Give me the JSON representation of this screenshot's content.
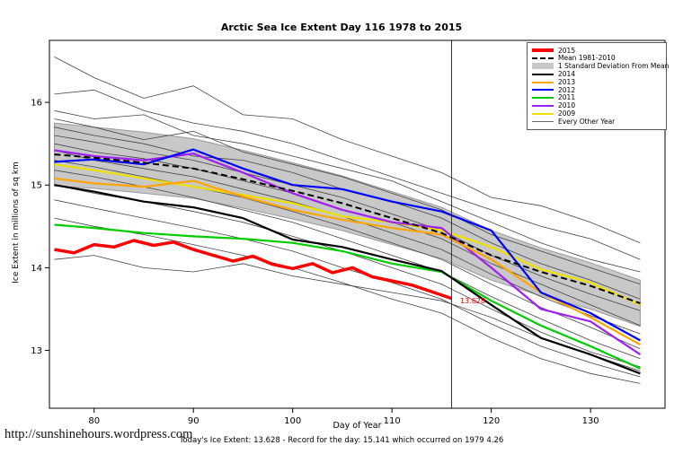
{
  "title": "Arctic Sea Ice Extent Day 116 1978 to 2015",
  "footer": {
    "url": "http://sunshinehours.wordpress.com",
    "caption": "Today's Ice Extent: 13.628  - Record for the day: 15.141 which occurred on 1979 4.26"
  },
  "legend": {
    "items": [
      {
        "label": "2015",
        "swatch": "line",
        "color": "#FF0000",
        "weight": 4
      },
      {
        "label": "Mean 1981-2010",
        "swatch": "dashed",
        "color": "#000000",
        "weight": 2
      },
      {
        "label": "1 Standard Deviation From Mean",
        "swatch": "box",
        "color": "#C8C8C8"
      },
      {
        "label": "2014",
        "swatch": "line",
        "color": "#000000",
        "weight": 2
      },
      {
        "label": "2013",
        "swatch": "line",
        "color": "#FFA500",
        "weight": 2
      },
      {
        "label": "2012",
        "swatch": "line",
        "color": "#0000FF",
        "weight": 2
      },
      {
        "label": "2011",
        "swatch": "line",
        "color": "#00CC00",
        "weight": 2
      },
      {
        "label": "2010",
        "swatch": "line",
        "color": "#A020F0",
        "weight": 2
      },
      {
        "label": "2009",
        "swatch": "line",
        "color": "#EFE000",
        "weight": 2
      },
      {
        "label": "Every Other Year",
        "swatch": "line",
        "color": "#666666",
        "weight": 1
      }
    ]
  },
  "chart_data": {
    "type": "line",
    "title": "Arctic Sea Ice Extent Day 116 1978 to 2015",
    "xlabel": "Day of Year",
    "ylabel": "Ice Extent in millions of sq km",
    "xlim": [
      75.5,
      137.5
    ],
    "ylim": [
      12.3,
      16.75
    ],
    "xticks": [
      80,
      90,
      100,
      110,
      120,
      130
    ],
    "yticks": [
      13,
      14,
      15,
      16
    ],
    "vline_x": 116,
    "annotation": {
      "text": "13.628",
      "x": 116.5,
      "y": 13.6,
      "color": "#FF0000"
    },
    "x": [
      76,
      80,
      85,
      90,
      95,
      100,
      105,
      110,
      115,
      120,
      125,
      130,
      135
    ],
    "band": {
      "label": "1 Standard Deviation From Mean",
      "color": "#C8C8C8",
      "x": [
        76,
        80,
        85,
        90,
        95,
        100,
        105,
        110,
        115,
        120,
        125,
        130,
        135
      ],
      "upper": [
        15.75,
        15.7,
        15.64,
        15.56,
        15.42,
        15.27,
        15.11,
        14.92,
        14.73,
        14.45,
        14.24,
        14.06,
        13.85
      ],
      "lower": [
        14.99,
        14.96,
        14.9,
        14.84,
        14.72,
        14.59,
        14.45,
        14.28,
        14.11,
        13.85,
        13.66,
        13.5,
        13.29
      ]
    },
    "series": [
      {
        "name": "2009",
        "color": "#EFE000",
        "width": 2.2,
        "values": [
          15.25,
          15.18,
          15.08,
          14.98,
          14.88,
          14.78,
          14.62,
          14.55,
          14.45,
          14.25,
          13.98,
          13.82,
          13.55
        ]
      },
      {
        "name": "2010",
        "color": "#A020F0",
        "width": 2.2,
        "values": [
          15.42,
          15.35,
          15.3,
          15.38,
          15.15,
          14.9,
          14.7,
          14.55,
          14.48,
          14.0,
          13.5,
          13.35,
          12.95
        ]
      },
      {
        "name": "2011",
        "color": "#00CC00",
        "width": 2.2,
        "values": [
          14.52,
          14.48,
          14.42,
          14.38,
          14.35,
          14.3,
          14.2,
          14.05,
          13.95,
          13.6,
          13.3,
          13.05,
          12.78
        ]
      },
      {
        "name": "2013",
        "color": "#FFA500",
        "width": 2.2,
        "values": [
          15.08,
          15.02,
          14.98,
          15.05,
          14.86,
          14.7,
          14.58,
          14.48,
          14.4,
          14.1,
          13.7,
          13.4,
          13.07
        ]
      },
      {
        "name": "2012",
        "color": "#0000FF",
        "width": 2.2,
        "values": [
          15.28,
          15.31,
          15.25,
          15.43,
          15.2,
          15.0,
          14.95,
          14.8,
          14.68,
          14.45,
          13.7,
          13.45,
          13.12
        ]
      },
      {
        "name": "2014",
        "color": "#000000",
        "width": 2.2,
        "values": [
          15.0,
          14.92,
          14.8,
          14.73,
          14.6,
          14.34,
          14.25,
          14.1,
          13.96,
          13.55,
          13.15,
          12.95,
          12.72
        ]
      },
      {
        "name": "Mean 1981-2010",
        "color": "#000000",
        "width": 2,
        "dash": "7 4",
        "values": [
          15.37,
          15.33,
          15.27,
          15.2,
          15.07,
          14.93,
          14.78,
          14.6,
          14.42,
          14.15,
          13.95,
          13.78,
          13.57
        ]
      },
      {
        "name": "2015",
        "color": "#FF0000",
        "width": 3.5,
        "x": [
          76,
          78,
          80,
          82,
          84,
          86,
          88,
          90,
          92,
          94,
          96,
          98,
          100,
          102,
          104,
          106,
          108,
          110,
          112,
          114,
          116
        ],
        "values": [
          14.22,
          14.18,
          14.28,
          14.25,
          14.33,
          14.27,
          14.31,
          14.22,
          14.15,
          14.08,
          14.14,
          14.04,
          13.99,
          14.05,
          13.94,
          14.0,
          13.89,
          13.84,
          13.79,
          13.71,
          13.628
        ]
      }
    ],
    "other_years": {
      "label": "Every Other Year",
      "color": "#444444",
      "series": [
        [
          16.55,
          16.3,
          16.05,
          16.2,
          15.85,
          15.8,
          15.55,
          15.35,
          15.15,
          14.85,
          14.75,
          14.55,
          14.3
        ],
        [
          16.1,
          16.15,
          15.9,
          15.75,
          15.65,
          15.5,
          15.3,
          15.1,
          14.9,
          14.7,
          14.5,
          14.35,
          14.1
        ],
        [
          15.9,
          15.8,
          15.85,
          15.6,
          15.5,
          15.35,
          15.2,
          15.05,
          14.8,
          14.55,
          14.3,
          14.1,
          13.95
        ],
        [
          15.8,
          15.7,
          15.55,
          15.65,
          15.4,
          15.25,
          15.1,
          14.9,
          14.7,
          14.4,
          14.2,
          14.0,
          13.8
        ],
        [
          15.7,
          15.6,
          15.5,
          15.35,
          15.3,
          15.15,
          14.95,
          14.8,
          14.6,
          14.3,
          14.05,
          13.85,
          13.62
        ],
        [
          15.6,
          15.52,
          15.4,
          15.3,
          15.15,
          15.0,
          14.85,
          14.65,
          14.45,
          14.15,
          13.9,
          13.68,
          13.48
        ],
        [
          15.5,
          15.4,
          15.32,
          15.2,
          15.05,
          14.9,
          14.7,
          14.55,
          14.35,
          14.05,
          13.8,
          13.55,
          13.3
        ],
        [
          15.42,
          15.3,
          15.2,
          15.1,
          14.95,
          14.8,
          14.62,
          14.42,
          14.22,
          13.92,
          13.65,
          13.42,
          13.2
        ],
        [
          15.3,
          15.22,
          15.1,
          14.98,
          14.85,
          14.68,
          14.5,
          14.3,
          14.1,
          13.8,
          13.52,
          13.28,
          13.02
        ],
        [
          15.18,
          15.1,
          14.98,
          14.85,
          14.7,
          14.55,
          14.35,
          14.15,
          13.95,
          13.65,
          13.38,
          13.12,
          12.9
        ],
        [
          15.0,
          14.9,
          14.8,
          14.68,
          14.55,
          14.38,
          14.2,
          14.0,
          13.8,
          13.5,
          13.22,
          12.98,
          12.8
        ],
        [
          14.82,
          14.72,
          14.6,
          14.48,
          14.35,
          14.2,
          14.0,
          13.82,
          13.62,
          13.32,
          13.05,
          12.85,
          12.68
        ],
        [
          14.6,
          14.5,
          14.4,
          14.28,
          14.15,
          14.0,
          13.82,
          13.62,
          13.45,
          13.15,
          12.9,
          12.72,
          12.6
        ],
        [
          14.1,
          14.15,
          14.0,
          13.95,
          14.05,
          13.9,
          13.8,
          13.7,
          13.6,
          13.4,
          13.15,
          12.95,
          12.75
        ]
      ]
    }
  }
}
